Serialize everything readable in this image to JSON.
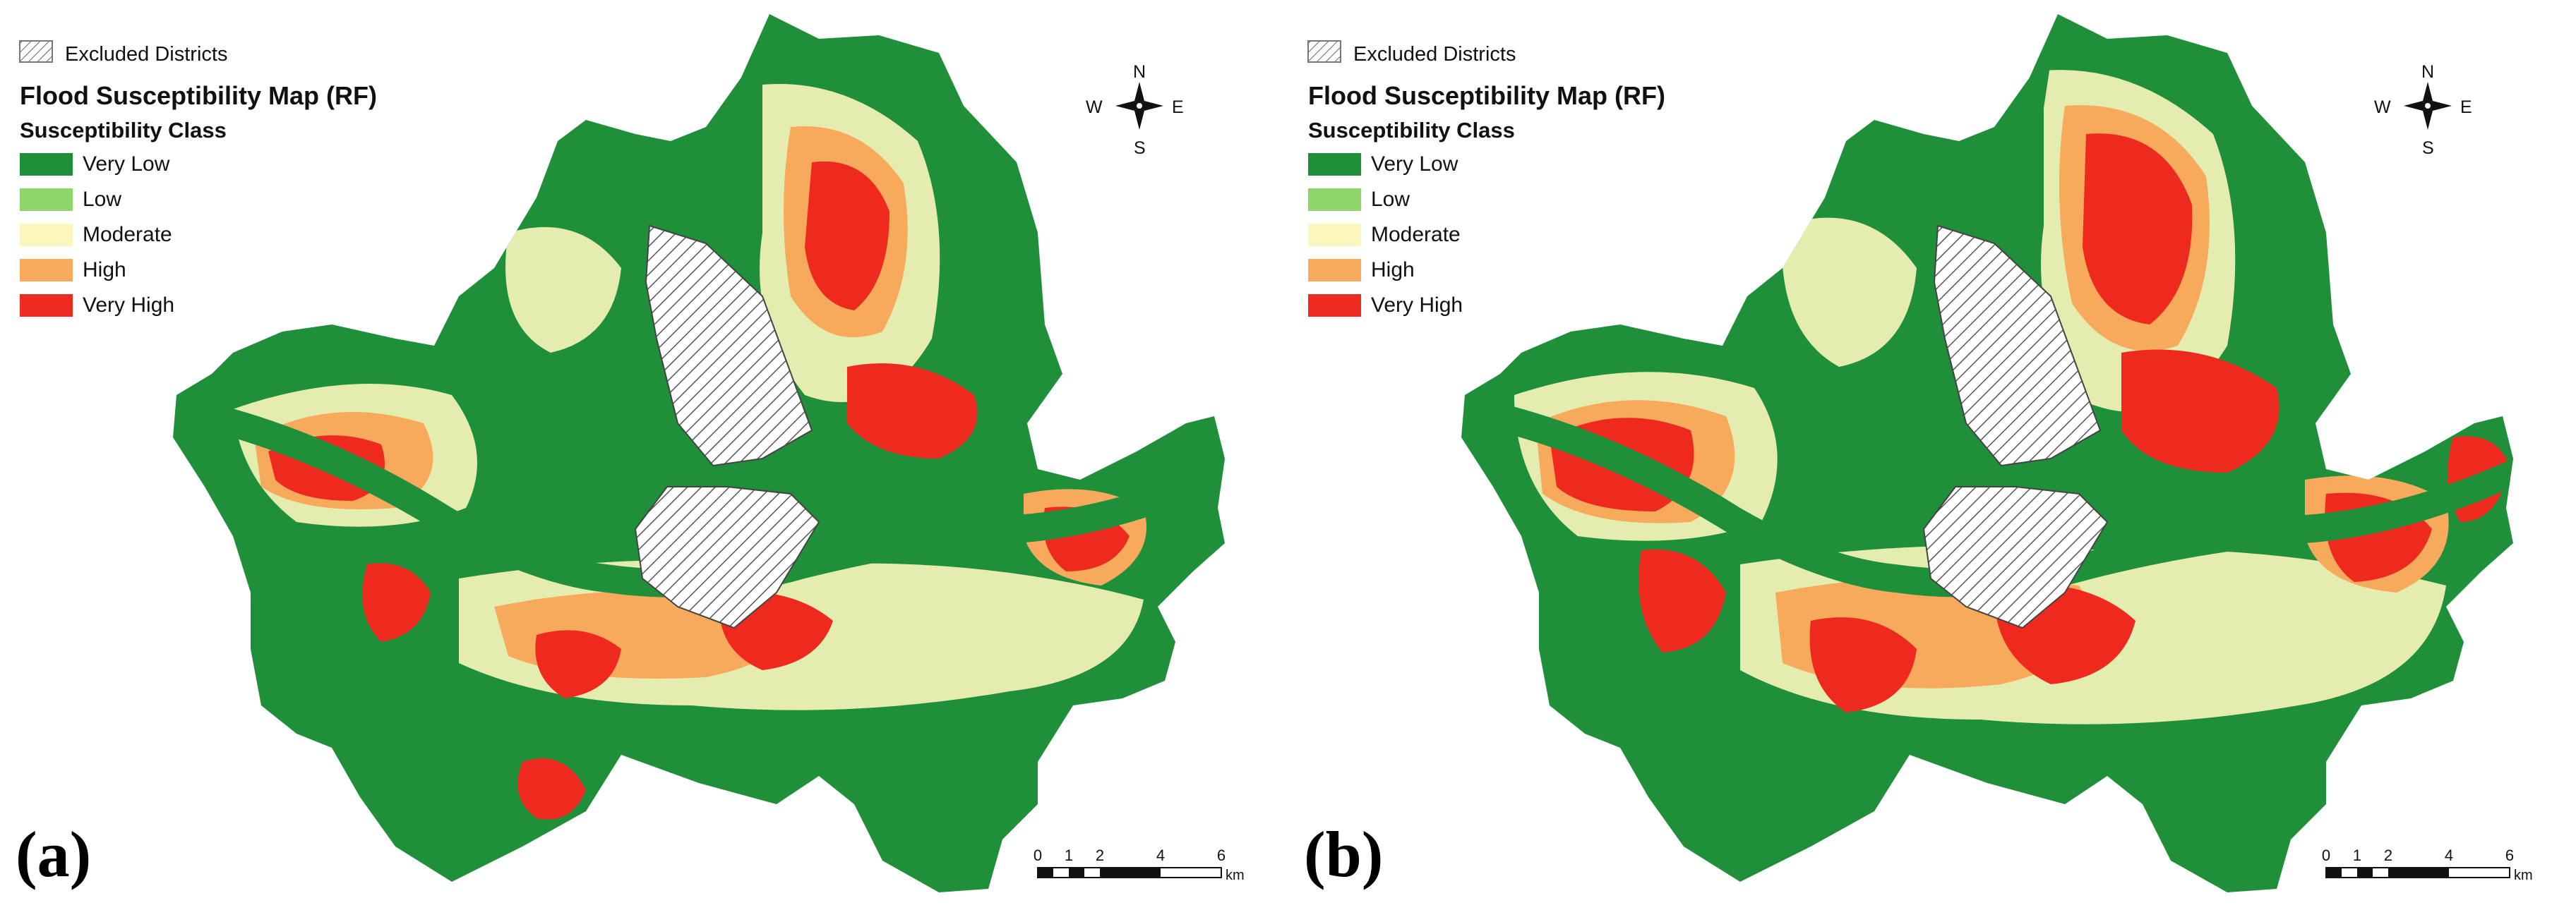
{
  "legend": {
    "excluded_label": "Excluded Districts",
    "title": "Flood Susceptibility Map (RF)",
    "subtitle": "Susceptibility Class",
    "classes": [
      {
        "label": "Very Low",
        "color": "#1f8f3a"
      },
      {
        "label": "Low",
        "color": "#8fd66a"
      },
      {
        "label": "Moderate",
        "color": "#fbf6bd"
      },
      {
        "label": "High",
        "color": "#f7a95c"
      },
      {
        "label": "Very High",
        "color": "#ee2a1f"
      }
    ]
  },
  "compass": {
    "n": "N",
    "s": "S",
    "e": "E",
    "w": "W"
  },
  "scale_bar": {
    "ticks": [
      "0",
      "1",
      "2",
      "4",
      "6"
    ],
    "unit": "km"
  },
  "panels": [
    {
      "label": "(a)"
    },
    {
      "label": "(b)"
    }
  ]
}
